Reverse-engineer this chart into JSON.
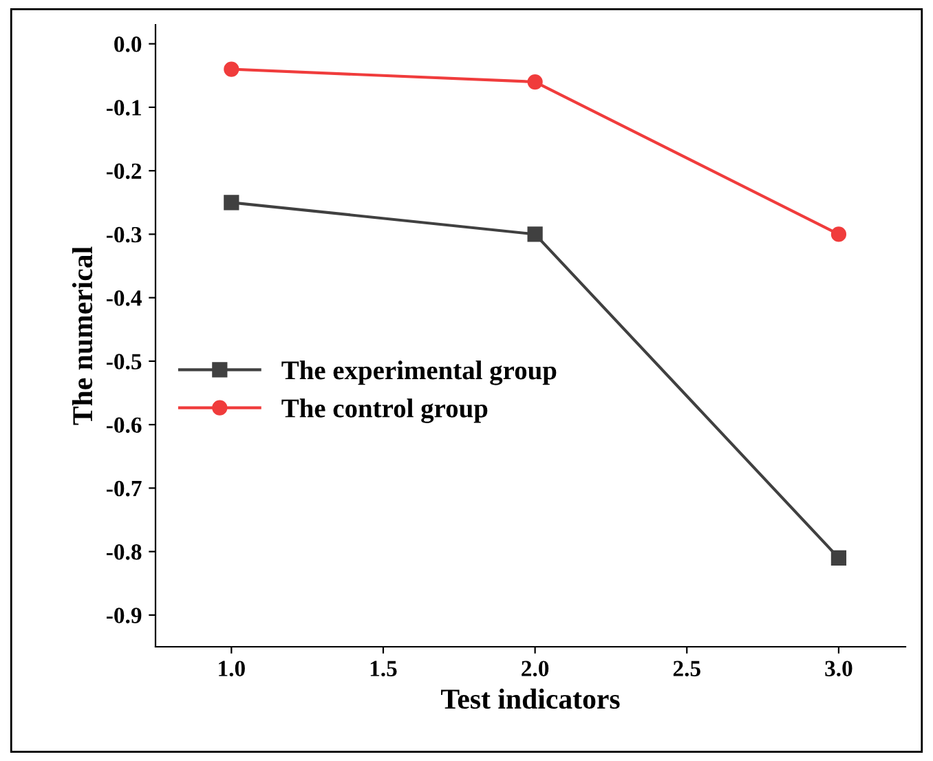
{
  "chart_data": {
    "type": "line",
    "xlabel": "Test indicators",
    "ylabel": "The numerical",
    "x": [
      1.0,
      2.0,
      3.0
    ],
    "series": [
      {
        "name": "The experimental group",
        "color": "#404040",
        "values": [
          -0.25,
          -0.3,
          -0.81
        ],
        "marker": "square"
      },
      {
        "name": "The control group",
        "color": "#f03c3c",
        "values": [
          -0.04,
          -0.06,
          -0.3
        ],
        "marker": "circle"
      }
    ],
    "xlim": [
      0.75,
      3.22
    ],
    "ylim": [
      -0.95,
      0.03
    ],
    "xticks": [
      {
        "value": 1.0,
        "label": "1.0"
      },
      {
        "value": 1.5,
        "label": "1.5"
      },
      {
        "value": 2.0,
        "label": "2.0"
      },
      {
        "value": 2.5,
        "label": "2.5"
      },
      {
        "value": 3.0,
        "label": "3.0"
      }
    ],
    "yticks": [
      {
        "value": 0,
        "label": "0.0"
      },
      {
        "value": -0.1,
        "label": "-0.1"
      },
      {
        "value": -0.2,
        "label": "-0.2"
      },
      {
        "value": -0.3,
        "label": "-0.3"
      },
      {
        "value": -0.4,
        "label": "-0.4"
      },
      {
        "value": -0.5,
        "label": "-0.5"
      },
      {
        "value": -0.6,
        "label": "-0.6"
      },
      {
        "value": -0.7,
        "label": "-0.7"
      },
      {
        "value": -0.8,
        "label": "-0.8"
      },
      {
        "value": -0.9,
        "label": "-0.9"
      }
    ],
    "legend": "center left",
    "grid": false,
    "line_style": "solid"
  }
}
